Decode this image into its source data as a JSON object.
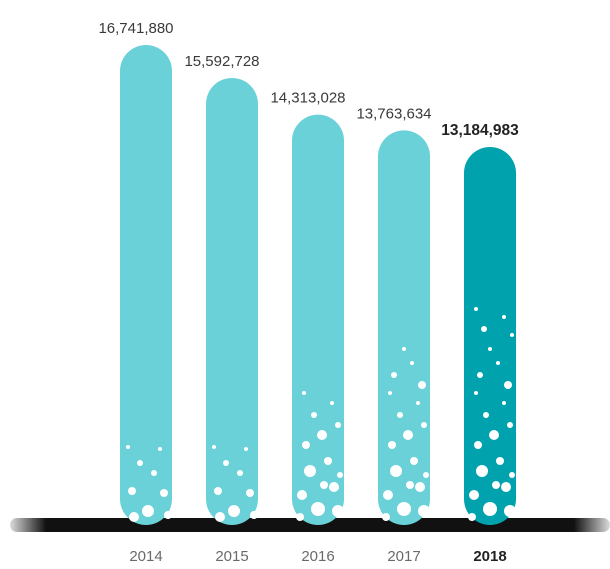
{
  "chart_data": {
    "type": "bar",
    "title": "",
    "xlabel": "",
    "ylabel": "",
    "categories": [
      "2014",
      "2015",
      "2016",
      "2017",
      "2018"
    ],
    "values": [
      16741880,
      15592728,
      14313028,
      13763634,
      13184983
    ],
    "value_labels": [
      "16,741,880",
      "15,592,728",
      "14,313,028",
      "13,763,634",
      "13,184,983"
    ],
    "highlight_category": "2018",
    "colors": {
      "bar": "#6ad1d8",
      "highlight": "#00a3ad",
      "baseline": "#111111"
    },
    "grid": false,
    "legend": "none"
  }
}
